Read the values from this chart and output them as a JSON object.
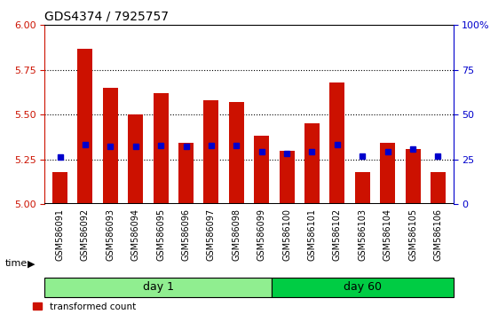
{
  "title": "GDS4374 / 7925757",
  "samples": [
    "GSM586091",
    "GSM586092",
    "GSM586093",
    "GSM586094",
    "GSM586095",
    "GSM586096",
    "GSM586097",
    "GSM586098",
    "GSM586099",
    "GSM586100",
    "GSM586101",
    "GSM586102",
    "GSM586103",
    "GSM586104",
    "GSM586105",
    "GSM586106"
  ],
  "bar_values": [
    5.18,
    5.87,
    5.65,
    5.5,
    5.62,
    5.34,
    5.58,
    5.57,
    5.38,
    5.3,
    5.45,
    5.68,
    5.18,
    5.34,
    5.31,
    5.18
  ],
  "blue_values": [
    5.265,
    5.335,
    5.325,
    5.325,
    5.33,
    5.325,
    5.33,
    5.33,
    5.295,
    5.285,
    5.295,
    5.335,
    5.27,
    5.295,
    5.31,
    5.27
  ],
  "ylim_left": [
    5.0,
    6.0
  ],
  "ylim_right": [
    0,
    100
  ],
  "yticks_left": [
    5.0,
    5.25,
    5.5,
    5.75,
    6.0
  ],
  "yticks_right": [
    0,
    25,
    50,
    75,
    100
  ],
  "bar_color": "#cc1100",
  "blue_color": "#0000cc",
  "day1_color": "#90ee90",
  "day60_color": "#00cc44",
  "day1_samples": 8,
  "day60_samples": 8,
  "background_color": "#ffffff",
  "grid_color": "#000000",
  "bar_bottom": 5.0,
  "bar_width": 0.6
}
